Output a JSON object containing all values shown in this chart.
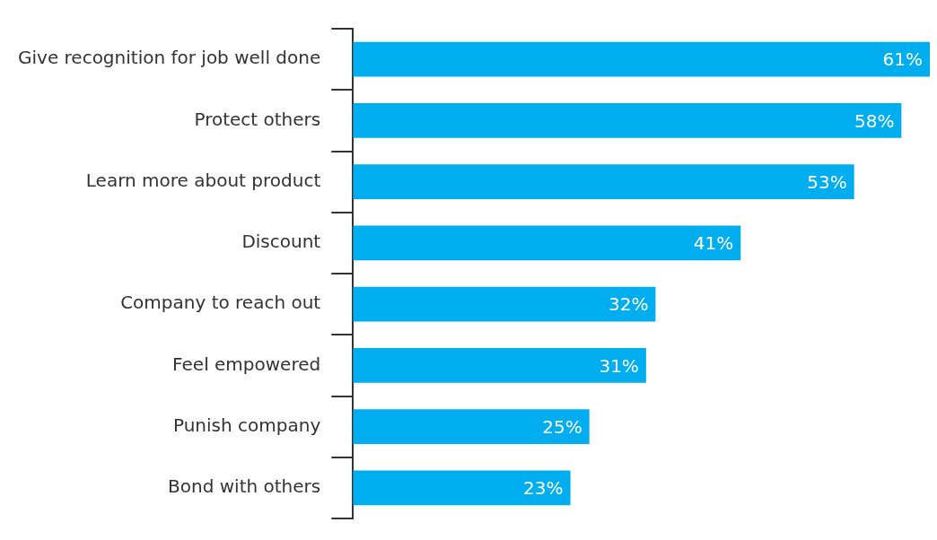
{
  "chart_data": {
    "type": "bar",
    "orientation": "horizontal",
    "categories": [
      "Give recognition for job well done",
      "Protect others",
      "Learn more about product",
      "Discount",
      "Company to reach out",
      "Feel empowered",
      "Punish company",
      "Bond with others"
    ],
    "values": [
      61,
      58,
      53,
      41,
      32,
      31,
      25,
      23
    ],
    "value_labels": [
      "61%",
      "58%",
      "53%",
      "41%",
      "32%",
      "31%",
      "25%",
      "23%"
    ],
    "color": "#00adee",
    "grid": false,
    "legend": false
  }
}
